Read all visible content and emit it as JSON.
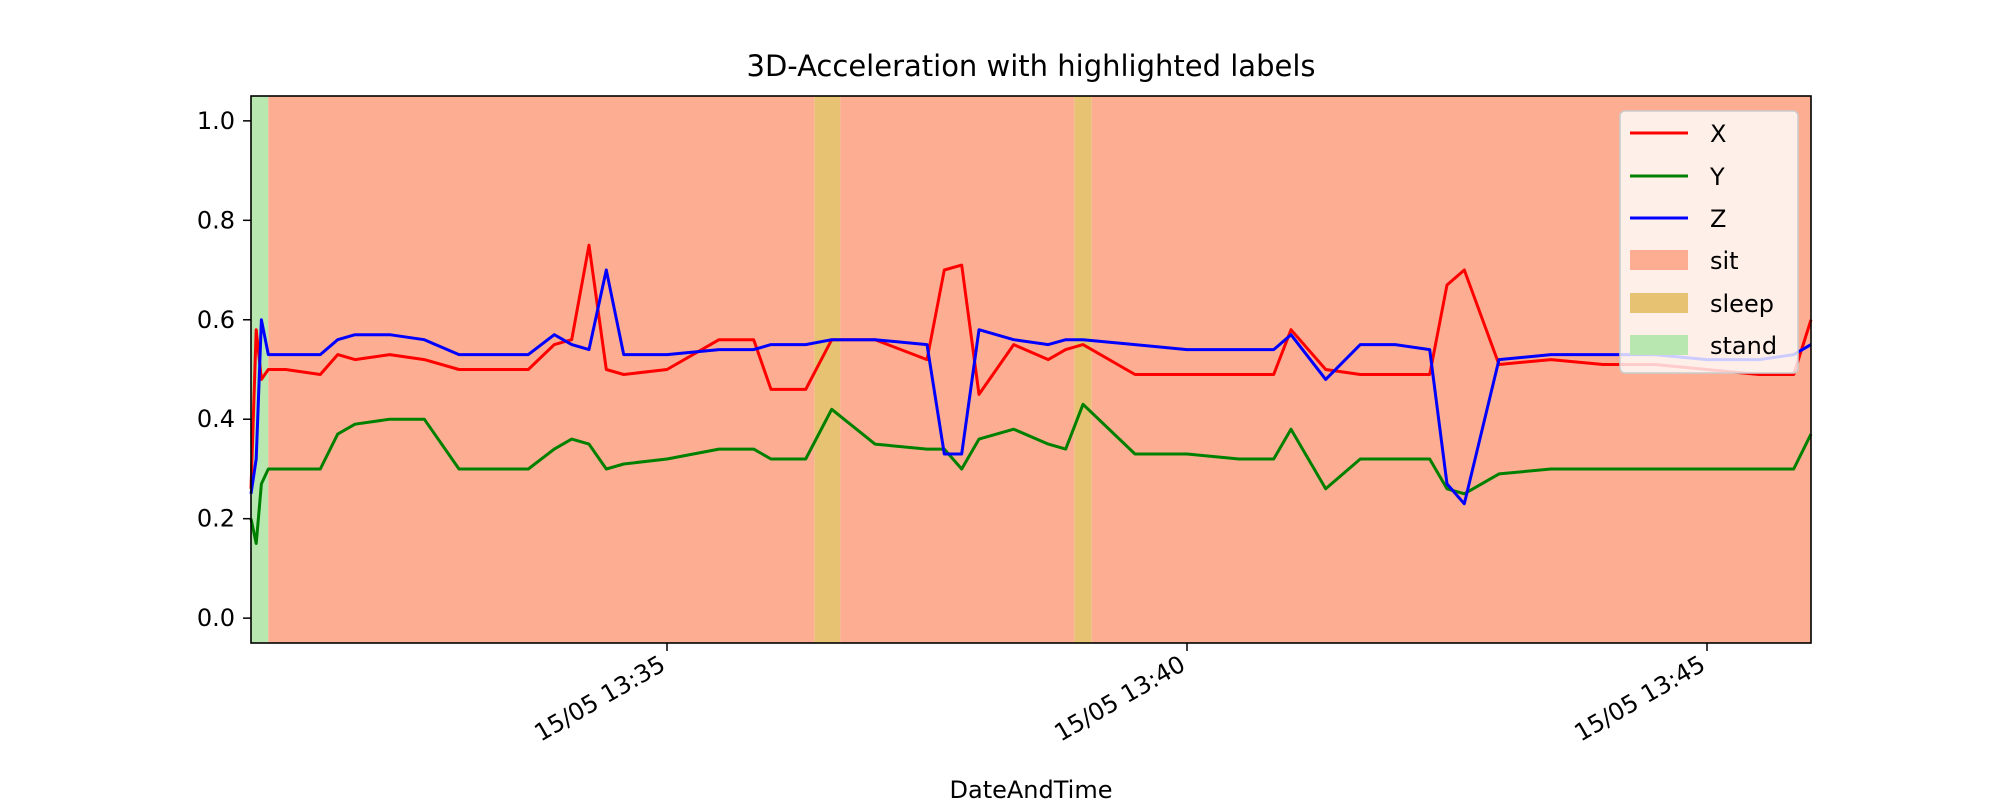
{
  "chart_data": {
    "type": "line",
    "title": "3D-Acceleration with highlighted labels",
    "xlabel": "DateAndTime",
    "ylabel": "",
    "x_range": [
      "15/05 13:31:00",
      "15/05 13:46:00"
    ],
    "ylim": [
      -0.05,
      1.05
    ],
    "y_ticks": [
      0.0,
      0.2,
      0.4,
      0.6,
      0.8,
      1.0
    ],
    "y_tick_labels": [
      "0.0",
      "0.2",
      "0.4",
      "0.6",
      "0.8",
      "1.0"
    ],
    "x_ticks": [
      "15/05 13:35:00",
      "15/05 13:40:00",
      "15/05 13:45:00"
    ],
    "x_tick_labels": [
      "15/05 13:35",
      "15/05 13:40",
      "15/05 13:45"
    ],
    "grid": false,
    "legend_position": "top-right",
    "label_colors": {
      "sit": "#fdae92",
      "sleep": "#e6c272",
      "stand": "#b8e8b0"
    },
    "label_spans": [
      {
        "label": "stand",
        "start": "15/05 13:31:00",
        "end": "15/05 13:31:10"
      },
      {
        "label": "sit",
        "start": "15/05 13:31:10",
        "end": "15/05 13:36:25"
      },
      {
        "label": "sleep",
        "start": "15/05 13:36:25",
        "end": "15/05 13:36:40"
      },
      {
        "label": "sit",
        "start": "15/05 13:36:40",
        "end": "15/05 13:38:55"
      },
      {
        "label": "sleep",
        "start": "15/05 13:38:55",
        "end": "15/05 13:39:05"
      },
      {
        "label": "sit",
        "start": "15/05 13:39:05",
        "end": "15/05 13:46:00"
      }
    ],
    "series": [
      {
        "name": "X",
        "color": "#ff0000",
        "x": [
          "15/05 13:31:00",
          "15/05 13:31:03",
          "15/05 13:31:06",
          "15/05 13:31:10",
          "15/05 13:31:20",
          "15/05 13:31:40",
          "15/05 13:31:50",
          "15/05 13:32:00",
          "15/05 13:32:20",
          "15/05 13:32:40",
          "15/05 13:33:00",
          "15/05 13:33:20",
          "15/05 13:33:40",
          "15/05 13:33:55",
          "15/05 13:34:05",
          "15/05 13:34:15",
          "15/05 13:34:25",
          "15/05 13:34:35",
          "15/05 13:35:00",
          "15/05 13:35:30",
          "15/05 13:35:50",
          "15/05 13:36:00",
          "15/05 13:36:20",
          "15/05 13:36:35",
          "15/05 13:37:00",
          "15/05 13:37:30",
          "15/05 13:37:40",
          "15/05 13:37:50",
          "15/05 13:38:00",
          "15/05 13:38:20",
          "15/05 13:38:40",
          "15/05 13:38:50",
          "15/05 13:39:00",
          "15/05 13:39:30",
          "15/05 13:40:00",
          "15/05 13:40:30",
          "15/05 13:40:50",
          "15/05 13:41:00",
          "15/05 13:41:20",
          "15/05 13:41:40",
          "15/05 13:42:00",
          "15/05 13:42:20",
          "15/05 13:42:30",
          "15/05 13:42:40",
          "15/05 13:43:00",
          "15/05 13:43:30",
          "15/05 13:44:00",
          "15/05 13:44:30",
          "15/05 13:45:00",
          "15/05 13:45:30",
          "15/05 13:45:50",
          "15/05 13:46:00"
        ],
        "values": [
          0.26,
          0.58,
          0.48,
          0.5,
          0.5,
          0.49,
          0.53,
          0.52,
          0.53,
          0.52,
          0.5,
          0.5,
          0.5,
          0.55,
          0.56,
          0.75,
          0.5,
          0.49,
          0.5,
          0.56,
          0.56,
          0.46,
          0.46,
          0.56,
          0.56,
          0.52,
          0.7,
          0.71,
          0.45,
          0.55,
          0.52,
          0.54,
          0.55,
          0.49,
          0.49,
          0.49,
          0.49,
          0.58,
          0.5,
          0.49,
          0.49,
          0.49,
          0.67,
          0.7,
          0.51,
          0.52,
          0.51,
          0.51,
          0.5,
          0.49,
          0.49,
          0.6
        ]
      },
      {
        "name": "Y",
        "color": "#008000",
        "x": [
          "15/05 13:31:00",
          "15/05 13:31:03",
          "15/05 13:31:06",
          "15/05 13:31:10",
          "15/05 13:31:20",
          "15/05 13:31:40",
          "15/05 13:31:50",
          "15/05 13:32:00",
          "15/05 13:32:20",
          "15/05 13:32:40",
          "15/05 13:33:00",
          "15/05 13:33:20",
          "15/05 13:33:40",
          "15/05 13:33:55",
          "15/05 13:34:05",
          "15/05 13:34:15",
          "15/05 13:34:25",
          "15/05 13:34:35",
          "15/05 13:35:00",
          "15/05 13:35:30",
          "15/05 13:35:50",
          "15/05 13:36:00",
          "15/05 13:36:20",
          "15/05 13:36:35",
          "15/05 13:37:00",
          "15/05 13:37:30",
          "15/05 13:37:40",
          "15/05 13:37:50",
          "15/05 13:38:00",
          "15/05 13:38:20",
          "15/05 13:38:40",
          "15/05 13:38:50",
          "15/05 13:39:00",
          "15/05 13:39:30",
          "15/05 13:40:00",
          "15/05 13:40:30",
          "15/05 13:40:50",
          "15/05 13:41:00",
          "15/05 13:41:20",
          "15/05 13:41:40",
          "15/05 13:42:00",
          "15/05 13:42:20",
          "15/05 13:42:30",
          "15/05 13:42:40",
          "15/05 13:43:00",
          "15/05 13:43:30",
          "15/05 13:44:00",
          "15/05 13:44:30",
          "15/05 13:45:00",
          "15/05 13:45:30",
          "15/05 13:45:50",
          "15/05 13:46:00"
        ],
        "values": [
          0.2,
          0.15,
          0.27,
          0.3,
          0.3,
          0.3,
          0.37,
          0.39,
          0.4,
          0.4,
          0.3,
          0.3,
          0.3,
          0.34,
          0.36,
          0.35,
          0.3,
          0.31,
          0.32,
          0.34,
          0.34,
          0.32,
          0.32,
          0.42,
          0.35,
          0.34,
          0.34,
          0.3,
          0.36,
          0.38,
          0.35,
          0.34,
          0.43,
          0.33,
          0.33,
          0.32,
          0.32,
          0.38,
          0.26,
          0.32,
          0.32,
          0.32,
          0.26,
          0.25,
          0.29,
          0.3,
          0.3,
          0.3,
          0.3,
          0.3,
          0.3,
          0.37
        ]
      },
      {
        "name": "Z",
        "color": "#0000ff",
        "x": [
          "15/05 13:31:00",
          "15/05 13:31:03",
          "15/05 13:31:06",
          "15/05 13:31:10",
          "15/05 13:31:20",
          "15/05 13:31:40",
          "15/05 13:31:50",
          "15/05 13:32:00",
          "15/05 13:32:20",
          "15/05 13:32:40",
          "15/05 13:33:00",
          "15/05 13:33:20",
          "15/05 13:33:40",
          "15/05 13:33:55",
          "15/05 13:34:05",
          "15/05 13:34:15",
          "15/05 13:34:25",
          "15/05 13:34:35",
          "15/05 13:35:00",
          "15/05 13:35:30",
          "15/05 13:35:50",
          "15/05 13:36:00",
          "15/05 13:36:20",
          "15/05 13:36:35",
          "15/05 13:37:00",
          "15/05 13:37:30",
          "15/05 13:37:40",
          "15/05 13:37:50",
          "15/05 13:38:00",
          "15/05 13:38:20",
          "15/05 13:38:40",
          "15/05 13:38:50",
          "15/05 13:39:00",
          "15/05 13:39:30",
          "15/05 13:40:00",
          "15/05 13:40:30",
          "15/05 13:40:50",
          "15/05 13:41:00",
          "15/05 13:41:20",
          "15/05 13:41:40",
          "15/05 13:42:00",
          "15/05 13:42:20",
          "15/05 13:42:30",
          "15/05 13:42:40",
          "15/05 13:43:00",
          "15/05 13:43:30",
          "15/05 13:44:00",
          "15/05 13:44:30",
          "15/05 13:45:00",
          "15/05 13:45:30",
          "15/05 13:45:50",
          "15/05 13:46:00"
        ],
        "values": [
          0.25,
          0.32,
          0.6,
          0.53,
          0.53,
          0.53,
          0.56,
          0.57,
          0.57,
          0.56,
          0.53,
          0.53,
          0.53,
          0.57,
          0.55,
          0.54,
          0.7,
          0.53,
          0.53,
          0.54,
          0.54,
          0.55,
          0.55,
          0.56,
          0.56,
          0.55,
          0.33,
          0.33,
          0.58,
          0.56,
          0.55,
          0.56,
          0.56,
          0.55,
          0.54,
          0.54,
          0.54,
          0.57,
          0.48,
          0.55,
          0.55,
          0.54,
          0.27,
          0.23,
          0.52,
          0.53,
          0.53,
          0.53,
          0.52,
          0.52,
          0.53,
          0.55
        ]
      }
    ]
  }
}
